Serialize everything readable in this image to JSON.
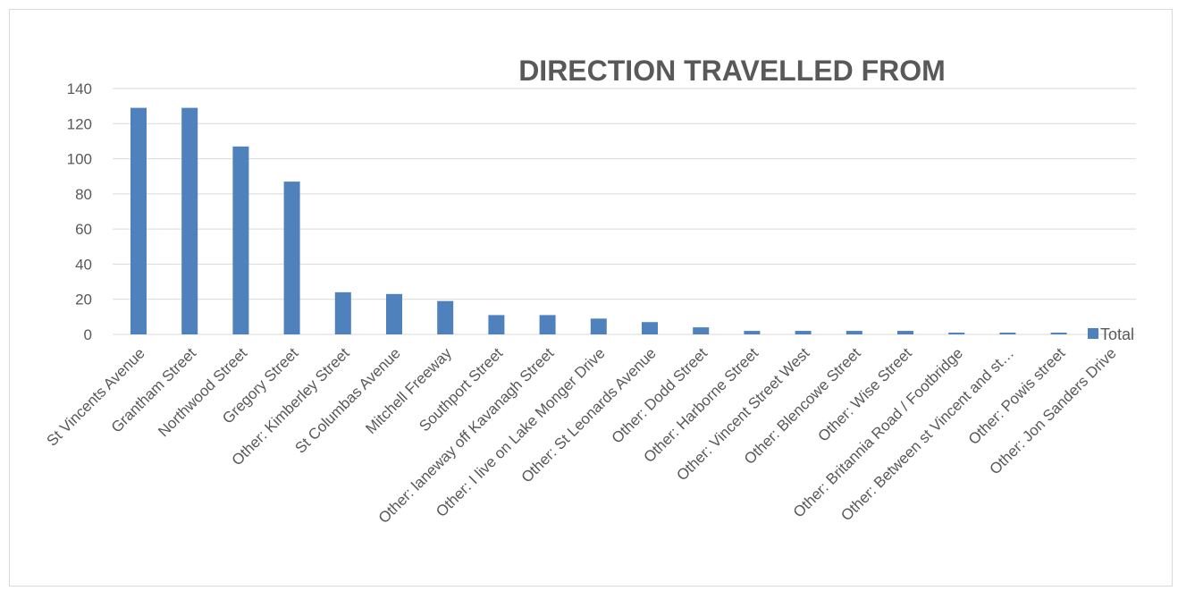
{
  "chart_data": {
    "type": "bar",
    "title": "DIRECTION TRAVELLED FROM",
    "xlabel": "",
    "ylabel": "",
    "ylim": [
      0,
      140
    ],
    "yticks": [
      0,
      20,
      40,
      60,
      80,
      100,
      120,
      140
    ],
    "grid": true,
    "legend_position": "right",
    "categories": [
      "St Vincents Avenue",
      "Grantham Street",
      "Northwood Street",
      "Gregory Street",
      "Other: Kimberley Street",
      "St Columbas Avenue",
      "Mitchell Freeway",
      "Southport Street",
      "Other: laneway off Kavanagh Street",
      "Other: I live on Lake Monger Drive",
      "Other: St Leonards Avenue",
      "Other: Dodd Street",
      "Other: Harborne Street",
      "Other: Vincent Street West",
      "Other: Blencowe Street",
      "Other: Wise Street",
      "Other: Britannia Road / Footbridge",
      "Other: Between st Vincent and st…",
      "Other: Powis street",
      "Other: Jon Sanders Drive"
    ],
    "series": [
      {
        "name": "Total",
        "color": "#4f81bd",
        "values": [
          129,
          129,
          107,
          87,
          24,
          23,
          19,
          11,
          11,
          9,
          7,
          4,
          2,
          2,
          2,
          2,
          1,
          1,
          1,
          0
        ]
      }
    ]
  }
}
